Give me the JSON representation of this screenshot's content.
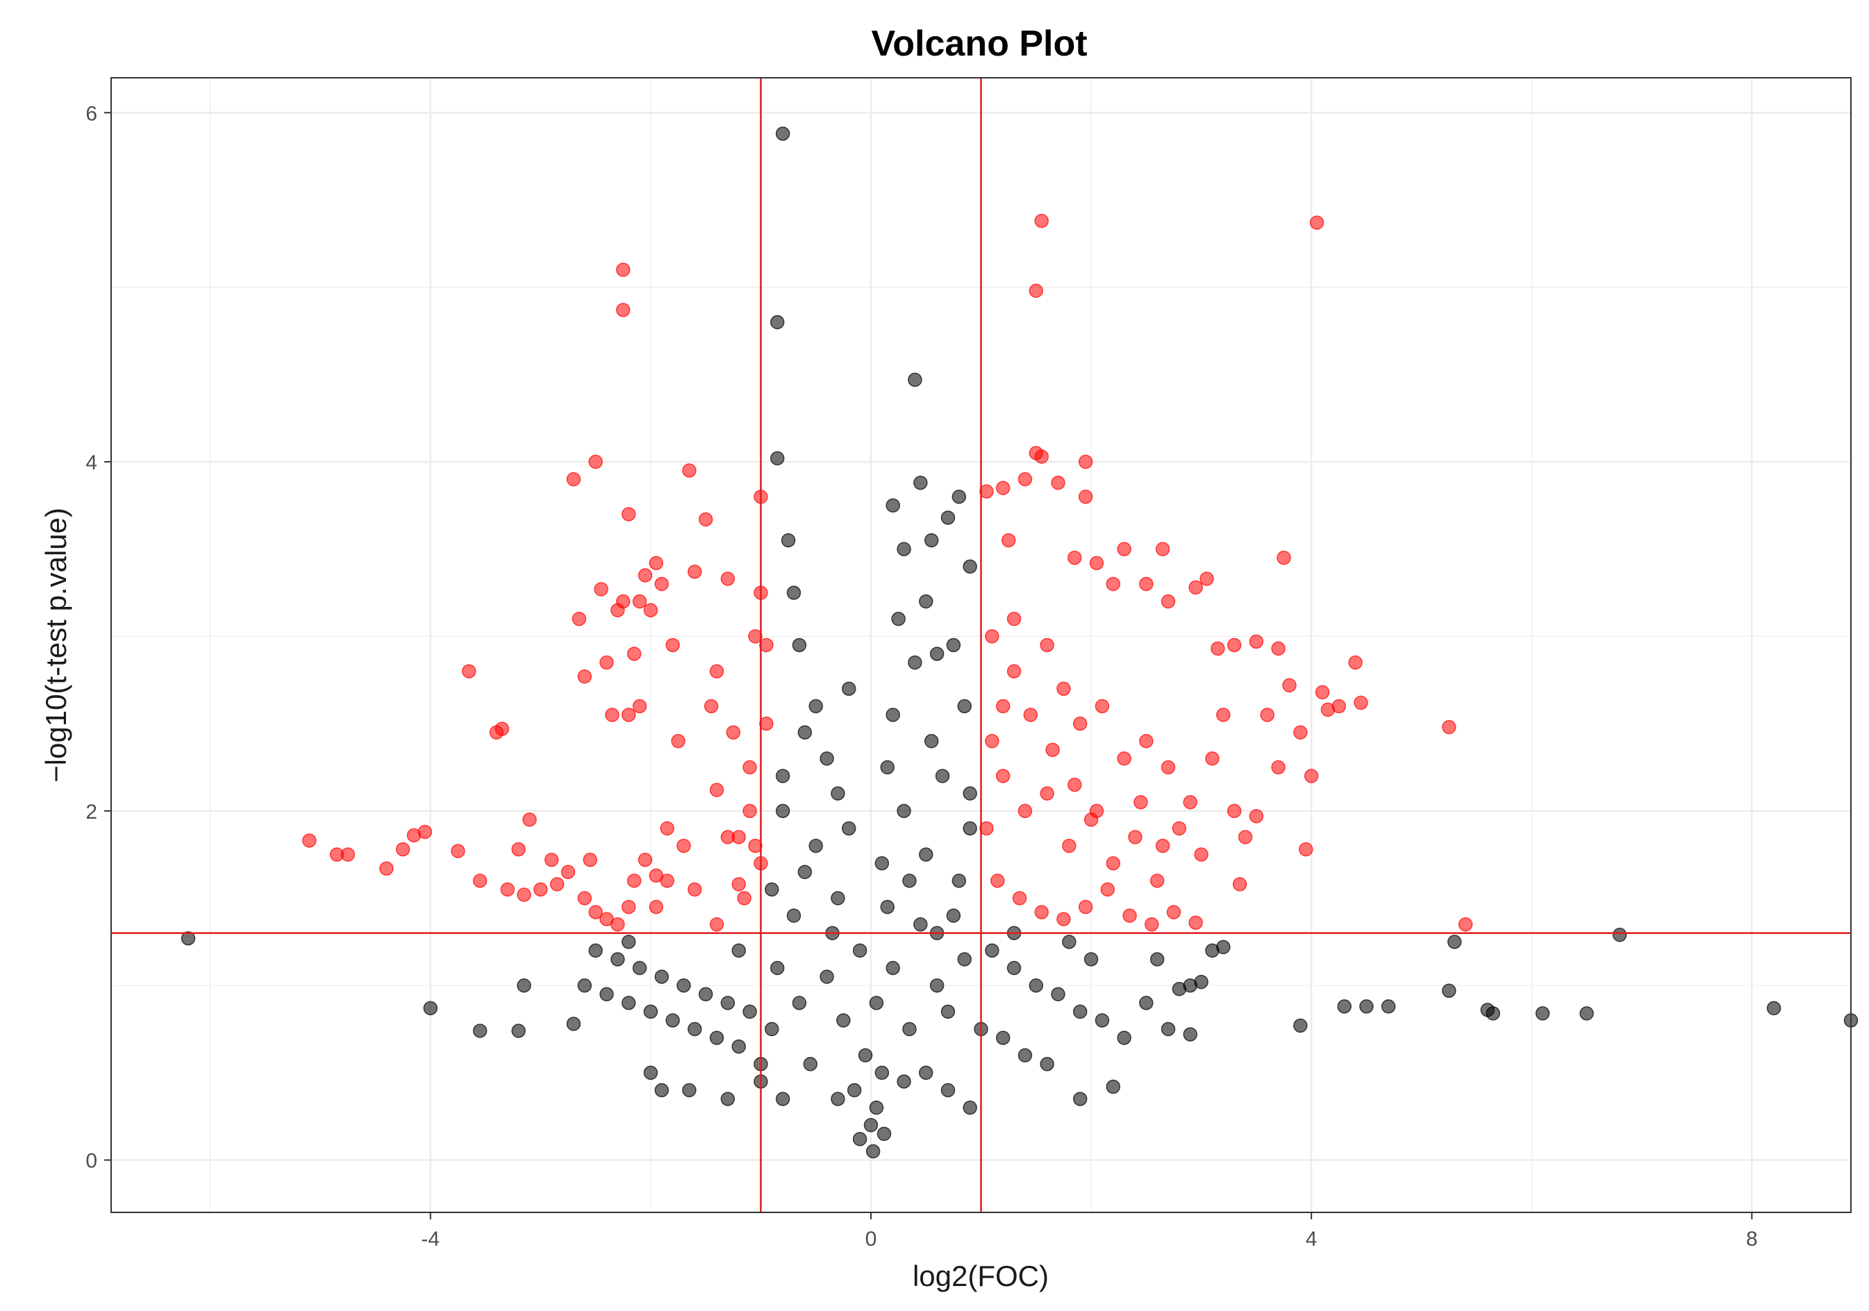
{
  "chart_data": {
    "type": "scatter",
    "title": "Volcano Plot",
    "xlabel": "log2(FOC)",
    "ylabel": "−log10(t-test p.value)",
    "xlim": [
      -6.9,
      8.9
    ],
    "ylim": [
      -0.3,
      6.2
    ],
    "x_ticks": [
      -4,
      0,
      4,
      8
    ],
    "y_ticks": [
      0,
      2,
      4,
      6
    ],
    "grid": true,
    "thresholds": {
      "log2_fc": [
        -1,
        1
      ],
      "neg_log10_p": 1.3
    },
    "colors": {
      "significant": "#ff0000",
      "not_significant": "#000000",
      "threshold_line": "#e31a1c",
      "grid": "#ebebeb",
      "panel_border": "#333333"
    },
    "series": [
      {
        "color": "#ff0000",
        "points": [
          [
            -5.1,
            1.83
          ],
          [
            -4.85,
            1.75
          ],
          [
            -4.75,
            1.75
          ],
          [
            -4.4,
            1.67
          ],
          [
            -4.25,
            1.78
          ],
          [
            -4.15,
            1.86
          ],
          [
            -4.05,
            1.88
          ],
          [
            -3.75,
            1.77
          ],
          [
            -3.65,
            2.8
          ],
          [
            -3.55,
            1.6
          ],
          [
            -3.4,
            2.45
          ],
          [
            -3.35,
            2.47
          ],
          [
            -3.2,
            1.78
          ],
          [
            -3.1,
            1.95
          ],
          [
            -3.0,
            1.55
          ],
          [
            -2.9,
            1.72
          ],
          [
            -2.75,
            1.65
          ],
          [
            -2.7,
            3.9
          ],
          [
            -2.65,
            3.1
          ],
          [
            -2.6,
            2.77
          ],
          [
            -2.55,
            1.72
          ],
          [
            -2.5,
            4.0
          ],
          [
            -2.45,
            3.27
          ],
          [
            -2.4,
            2.85
          ],
          [
            -2.3,
            3.15
          ],
          [
            -2.25,
            3.2
          ],
          [
            -2.25,
            5.1
          ],
          [
            -2.25,
            4.87
          ],
          [
            -2.2,
            3.7
          ],
          [
            -2.15,
            2.9
          ],
          [
            -2.1,
            3.2
          ],
          [
            -2.05,
            3.35
          ],
          [
            -2.0,
            3.15
          ],
          [
            -1.95,
            3.42
          ],
          [
            -1.9,
            3.3
          ],
          [
            -1.8,
            2.95
          ],
          [
            -1.75,
            2.4
          ],
          [
            -1.7,
            1.8
          ],
          [
            -1.65,
            3.95
          ],
          [
            -1.6,
            3.37
          ],
          [
            -1.5,
            3.67
          ],
          [
            -1.45,
            2.6
          ],
          [
            -1.4,
            2.8
          ],
          [
            -1.3,
            3.33
          ],
          [
            -1.25,
            2.45
          ],
          [
            -1.2,
            1.58
          ],
          [
            -1.15,
            1.5
          ],
          [
            -1.1,
            2.25
          ],
          [
            -1.05,
            3.0
          ],
          [
            -1.0,
            3.8
          ],
          [
            -1.0,
            3.25
          ],
          [
            -0.95,
            2.5
          ],
          [
            -0.95,
            2.95
          ],
          [
            -2.35,
            2.55
          ],
          [
            -2.2,
            2.55
          ],
          [
            -2.1,
            2.6
          ],
          [
            -1.4,
            2.12
          ],
          [
            -1.1,
            2.0
          ],
          [
            -1.95,
            1.45
          ],
          [
            -1.85,
            1.6
          ],
          [
            -1.6,
            1.55
          ],
          [
            -1.4,
            1.35
          ],
          [
            -1.3,
            1.85
          ],
          [
            -1.2,
            1.85
          ],
          [
            -1.05,
            1.8
          ],
          [
            -1.0,
            1.7
          ],
          [
            -2.6,
            1.5
          ],
          [
            -2.5,
            1.42
          ],
          [
            -2.4,
            1.38
          ],
          [
            -2.3,
            1.35
          ],
          [
            -2.2,
            1.45
          ],
          [
            -2.15,
            1.6
          ],
          [
            -2.05,
            1.72
          ],
          [
            -1.95,
            1.63
          ],
          [
            -1.85,
            1.9
          ],
          [
            -3.3,
            1.55
          ],
          [
            -3.15,
            1.52
          ],
          [
            -2.85,
            1.58
          ],
          [
            1.05,
            3.83
          ],
          [
            1.2,
            3.85
          ],
          [
            1.25,
            3.55
          ],
          [
            1.4,
            3.9
          ],
          [
            1.5,
            4.05
          ],
          [
            1.55,
            4.03
          ],
          [
            1.55,
            5.38
          ],
          [
            1.5,
            4.98
          ],
          [
            1.7,
            3.88
          ],
          [
            1.85,
            3.45
          ],
          [
            1.95,
            4.0
          ],
          [
            1.95,
            3.8
          ],
          [
            2.05,
            3.42
          ],
          [
            2.2,
            3.3
          ],
          [
            2.3,
            3.5
          ],
          [
            2.5,
            3.3
          ],
          [
            2.65,
            3.5
          ],
          [
            2.7,
            3.2
          ],
          [
            2.95,
            3.28
          ],
          [
            3.05,
            3.33
          ],
          [
            3.15,
            2.93
          ],
          [
            3.3,
            2.95
          ],
          [
            3.5,
            2.97
          ],
          [
            3.7,
            2.93
          ],
          [
            3.75,
            3.45
          ],
          [
            3.8,
            2.72
          ],
          [
            3.9,
            2.45
          ],
          [
            4.0,
            2.2
          ],
          [
            4.1,
            2.68
          ],
          [
            4.15,
            2.58
          ],
          [
            4.25,
            2.6
          ],
          [
            4.4,
            2.85
          ],
          [
            4.45,
            2.62
          ],
          [
            4.05,
            5.37
          ],
          [
            3.95,
            1.78
          ],
          [
            5.25,
            2.48
          ],
          [
            5.4,
            1.35
          ],
          [
            1.1,
            3.0
          ],
          [
            1.3,
            3.1
          ],
          [
            1.6,
            2.95
          ],
          [
            1.75,
            2.7
          ],
          [
            1.9,
            2.5
          ],
          [
            2.1,
            2.6
          ],
          [
            2.3,
            2.3
          ],
          [
            2.5,
            2.4
          ],
          [
            2.7,
            2.25
          ],
          [
            2.9,
            2.05
          ],
          [
            3.1,
            2.3
          ],
          [
            3.3,
            2.0
          ],
          [
            3.5,
            1.97
          ],
          [
            3.7,
            2.25
          ],
          [
            1.2,
            2.2
          ],
          [
            1.4,
            2.0
          ],
          [
            1.6,
            2.1
          ],
          [
            1.8,
            1.8
          ],
          [
            2.0,
            1.95
          ],
          [
            2.2,
            1.7
          ],
          [
            2.4,
            1.85
          ],
          [
            2.6,
            1.6
          ],
          [
            2.8,
            1.9
          ],
          [
            3.0,
            1.75
          ],
          [
            3.4,
            1.85
          ],
          [
            1.15,
            1.6
          ],
          [
            1.35,
            1.5
          ],
          [
            1.55,
            1.42
          ],
          [
            1.75,
            1.38
          ],
          [
            1.95,
            1.45
          ],
          [
            2.15,
            1.55
          ],
          [
            2.35,
            1.4
          ],
          [
            2.55,
            1.35
          ],
          [
            2.75,
            1.42
          ],
          [
            2.95,
            1.36
          ],
          [
            1.05,
            1.9
          ],
          [
            1.1,
            2.4
          ],
          [
            1.2,
            2.6
          ],
          [
            1.3,
            2.8
          ],
          [
            1.45,
            2.55
          ],
          [
            1.65,
            2.35
          ],
          [
            1.85,
            2.15
          ],
          [
            2.05,
            2.0
          ],
          [
            2.45,
            2.05
          ],
          [
            2.65,
            1.8
          ],
          [
            3.2,
            2.55
          ],
          [
            3.6,
            2.55
          ],
          [
            3.35,
            1.58
          ]
        ]
      },
      {
        "color": "#000000",
        "points": [
          [
            -6.2,
            1.27
          ],
          [
            -4.0,
            0.87
          ],
          [
            -3.55,
            0.74
          ],
          [
            -3.2,
            0.74
          ],
          [
            -3.15,
            1.0
          ],
          [
            -0.8,
            5.88
          ],
          [
            -0.85,
            4.8
          ],
          [
            -0.85,
            4.02
          ],
          [
            0.4,
            4.47
          ],
          [
            0.45,
            3.88
          ],
          [
            0.2,
            3.75
          ],
          [
            0.8,
            3.8
          ],
          [
            0.7,
            3.68
          ],
          [
            -0.75,
            3.55
          ],
          [
            -0.7,
            3.25
          ],
          [
            -0.65,
            2.95
          ],
          [
            0.3,
            3.5
          ],
          [
            0.5,
            3.2
          ],
          [
            0.9,
            3.4
          ],
          [
            -0.5,
            2.6
          ],
          [
            -0.4,
            2.3
          ],
          [
            0.6,
            2.9
          ],
          [
            0.75,
            2.95
          ],
          [
            -0.3,
            2.1
          ],
          [
            -0.6,
            2.45
          ],
          [
            -0.8,
            2.2
          ],
          [
            0.2,
            2.55
          ],
          [
            0.55,
            2.4
          ],
          [
            0.85,
            2.6
          ],
          [
            0.3,
            2.0
          ],
          [
            0.65,
            2.2
          ],
          [
            0.9,
            2.1
          ],
          [
            -0.2,
            1.9
          ],
          [
            -0.5,
            1.8
          ],
          [
            0.1,
            1.7
          ],
          [
            0.5,
            1.75
          ],
          [
            0.8,
            1.6
          ],
          [
            -0.9,
            1.55
          ],
          [
            -0.7,
            1.4
          ],
          [
            -0.3,
            1.5
          ],
          [
            0.15,
            1.45
          ],
          [
            0.45,
            1.35
          ],
          [
            0.75,
            1.4
          ],
          [
            -0.1,
            1.2
          ],
          [
            0.2,
            1.1
          ],
          [
            -0.4,
            1.05
          ],
          [
            0.6,
            1.0
          ],
          [
            0.05,
            0.9
          ],
          [
            -0.25,
            0.8
          ],
          [
            0.35,
            0.75
          ],
          [
            -0.05,
            0.6
          ],
          [
            0.1,
            0.5
          ],
          [
            -0.15,
            0.4
          ],
          [
            0.05,
            0.3
          ],
          [
            0.0,
            0.2
          ],
          [
            0.02,
            0.05
          ],
          [
            -0.1,
            0.12
          ],
          [
            0.12,
            0.15
          ],
          [
            -0.3,
            0.35
          ],
          [
            0.3,
            0.45
          ],
          [
            -0.55,
            0.55
          ],
          [
            0.5,
            0.5
          ],
          [
            -0.65,
            0.9
          ],
          [
            0.7,
            0.85
          ],
          [
            -0.85,
            1.1
          ],
          [
            0.85,
            1.15
          ],
          [
            -2.5,
            1.2
          ],
          [
            -2.3,
            1.15
          ],
          [
            -2.1,
            1.1
          ],
          [
            -1.9,
            1.05
          ],
          [
            -1.7,
            1.0
          ],
          [
            -1.5,
            0.95
          ],
          [
            -1.3,
            0.9
          ],
          [
            -1.1,
            0.85
          ],
          [
            -0.9,
            0.75
          ],
          [
            -2.6,
            1.0
          ],
          [
            -2.4,
            0.95
          ],
          [
            -2.2,
            0.9
          ],
          [
            -2.0,
            0.85
          ],
          [
            -1.8,
            0.8
          ],
          [
            -1.6,
            0.75
          ],
          [
            -1.4,
            0.7
          ],
          [
            -1.2,
            0.65
          ],
          [
            -1.0,
            0.55
          ],
          [
            -2.7,
            0.78
          ],
          [
            -2.0,
            0.5
          ],
          [
            -1.9,
            0.4
          ],
          [
            -1.65,
            0.4
          ],
          [
            -1.3,
            0.35
          ],
          [
            -1.0,
            0.45
          ],
          [
            -0.8,
            0.35
          ],
          [
            -2.2,
            1.25
          ],
          [
            -1.2,
            1.2
          ],
          [
            1.1,
            1.2
          ],
          [
            1.3,
            1.1
          ],
          [
            1.5,
            1.0
          ],
          [
            1.7,
            0.95
          ],
          [
            1.9,
            0.85
          ],
          [
            2.1,
            0.8
          ],
          [
            2.3,
            0.7
          ],
          [
            2.5,
            0.9
          ],
          [
            2.7,
            0.75
          ],
          [
            2.9,
            0.72
          ],
          [
            3.1,
            1.2
          ],
          [
            3.2,
            1.22
          ],
          [
            2.6,
            1.15
          ],
          [
            2.8,
            0.98
          ],
          [
            2.9,
            1.0
          ],
          [
            3.0,
            1.02
          ],
          [
            1.4,
            0.6
          ],
          [
            1.2,
            0.7
          ],
          [
            1.0,
            0.75
          ],
          [
            1.6,
            0.55
          ],
          [
            1.9,
            0.35
          ],
          [
            2.2,
            0.42
          ],
          [
            0.9,
            0.3
          ],
          [
            0.7,
            0.4
          ],
          [
            1.3,
            1.3
          ],
          [
            1.8,
            1.25
          ],
          [
            2.0,
            1.15
          ],
          [
            5.3,
            1.25
          ],
          [
            5.25,
            0.97
          ],
          [
            5.6,
            0.86
          ],
          [
            5.65,
            0.84
          ],
          [
            6.1,
            0.84
          ],
          [
            6.5,
            0.84
          ],
          [
            6.8,
            1.29
          ],
          [
            8.2,
            0.87
          ],
          [
            8.9,
            0.8
          ],
          [
            3.9,
            0.77
          ],
          [
            4.3,
            0.88
          ],
          [
            4.5,
            0.88
          ],
          [
            4.7,
            0.88
          ],
          [
            0.4,
            2.85
          ],
          [
            0.25,
            3.1
          ],
          [
            0.55,
            3.55
          ],
          [
            -0.2,
            2.7
          ],
          [
            0.15,
            2.25
          ],
          [
            0.35,
            1.6
          ],
          [
            -0.35,
            1.3
          ],
          [
            0.6,
            1.3
          ],
          [
            0.9,
            1.9
          ],
          [
            -0.8,
            2.0
          ],
          [
            -0.6,
            1.65
          ]
        ]
      }
    ]
  }
}
